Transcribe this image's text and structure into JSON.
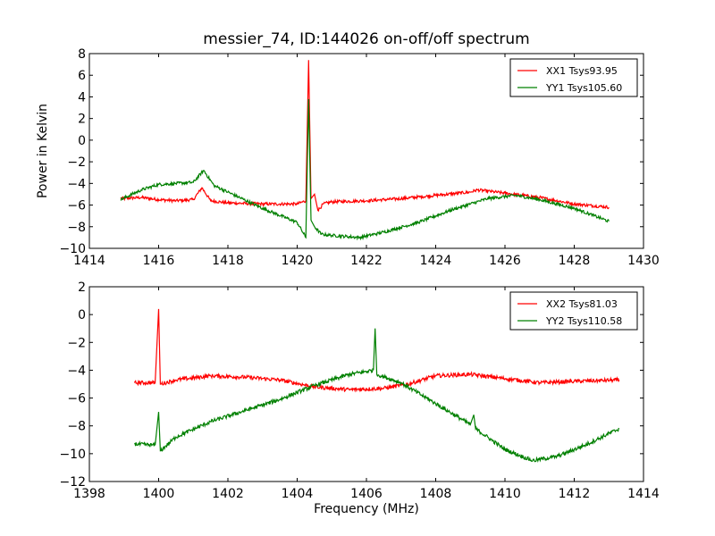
{
  "title": "messier_74, ID:144026 on-off/off spectrum",
  "colors": {
    "xx": "#ff0000",
    "yy": "#008000"
  },
  "chart_data": [
    {
      "type": "line",
      "title": "messier_74, ID:144026 on-off/off spectrum",
      "xlabel": "",
      "ylabel": "Power in Kelvin",
      "xlim": [
        1414,
        1430
      ],
      "ylim": [
        -10,
        8
      ],
      "xticks": [
        "1414",
        "1416",
        "1418",
        "1420",
        "1422",
        "1424",
        "1426",
        "1428",
        "1430"
      ],
      "yticks": [
        "−10",
        "−8",
        "−6",
        "−4",
        "−2",
        "0",
        "2",
        "4",
        "6",
        "8"
      ],
      "xtick_values": [
        1414,
        1416,
        1418,
        1420,
        1422,
        1424,
        1426,
        1428,
        1430
      ],
      "ytick_values": [
        -10,
        -8,
        -6,
        -4,
        -2,
        0,
        2,
        4,
        6,
        8
      ],
      "legend": "top-right",
      "series": [
        {
          "name": "XX1 Tsys93.95",
          "color": "#ff0000",
          "x": [
            1414.9,
            1415.5,
            1416.0,
            1416.5,
            1417.0,
            1417.25,
            1417.5,
            1418.0,
            1419.0,
            1420.0,
            1420.25,
            1420.33,
            1420.4,
            1420.5,
            1420.6,
            1420.75,
            1421.0,
            1422.0,
            1423.0,
            1424.0,
            1425.0,
            1425.2,
            1426.0,
            1427.0,
            1428.0,
            1429.0
          ],
          "y": [
            -5.4,
            -5.3,
            -5.5,
            -5.6,
            -5.5,
            -4.4,
            -5.6,
            -5.8,
            -5.9,
            -5.9,
            -5.6,
            7.4,
            -5.4,
            -5.0,
            -6.5,
            -5.9,
            -5.7,
            -5.6,
            -5.4,
            -5.1,
            -4.8,
            -4.6,
            -4.9,
            -5.3,
            -5.9,
            -6.2
          ]
        },
        {
          "name": "YY1 Tsys105.60",
          "color": "#008000",
          "x": [
            1414.9,
            1415.5,
            1416.0,
            1416.5,
            1417.0,
            1417.3,
            1417.6,
            1418.0,
            1419.0,
            1420.0,
            1420.25,
            1420.33,
            1420.4,
            1420.5,
            1420.7,
            1421.0,
            1421.8,
            1422.5,
            1423.5,
            1424.5,
            1425.5,
            1426.3,
            1427.0,
            1428.0,
            1429.0
          ],
          "y": [
            -5.5,
            -4.6,
            -4.1,
            -4.0,
            -3.9,
            -2.8,
            -4.2,
            -4.8,
            -6.3,
            -7.6,
            -9.0,
            3.8,
            -7.4,
            -8.0,
            -8.7,
            -8.8,
            -9.0,
            -8.5,
            -7.6,
            -6.4,
            -5.4,
            -5.1,
            -5.5,
            -6.3,
            -7.5
          ]
        }
      ]
    },
    {
      "type": "line",
      "title": "",
      "xlabel": "Frequency (MHz)",
      "ylabel": "",
      "xlim": [
        1398,
        1414
      ],
      "ylim": [
        -12,
        2
      ],
      "xticks": [
        "1398",
        "1400",
        "1402",
        "1404",
        "1406",
        "1408",
        "1410",
        "1412",
        "1414"
      ],
      "yticks": [
        "−12",
        "−10",
        "−8",
        "−6",
        "−4",
        "−2",
        "0",
        "2"
      ],
      "xtick_values": [
        1398,
        1400,
        1402,
        1404,
        1406,
        1408,
        1410,
        1412,
        1414
      ],
      "ytick_values": [
        -12,
        -10,
        -8,
        -6,
        -4,
        -2,
        0,
        2
      ],
      "legend": "top-right",
      "series": [
        {
          "name": "XX2 Tsys81.03",
          "color": "#ff0000",
          "x": [
            1399.3,
            1399.9,
            1400.0,
            1400.05,
            1400.5,
            1401.5,
            1402.5,
            1403.5,
            1404.5,
            1405.5,
            1406.5,
            1407.2,
            1408.0,
            1409.0,
            1410.0,
            1411.0,
            1412.0,
            1413.3
          ],
          "y": [
            -4.9,
            -4.9,
            0.4,
            -5.0,
            -4.7,
            -4.4,
            -4.5,
            -4.7,
            -5.2,
            -5.4,
            -5.3,
            -5.0,
            -4.4,
            -4.3,
            -4.6,
            -4.9,
            -4.8,
            -4.7
          ],
          "spikes_note": ""
        },
        {
          "name": "YY2 Tsys110.58",
          "color": "#008000",
          "x": [
            1399.3,
            1399.9,
            1400.0,
            1400.05,
            1400.5,
            1401.5,
            1402.5,
            1403.5,
            1404.5,
            1405.5,
            1406.2,
            1406.25,
            1406.3,
            1407.0,
            1408.0,
            1409.0,
            1409.1,
            1409.15,
            1410.0,
            1410.8,
            1411.5,
            1412.3,
            1413.3
          ],
          "y": [
            -9.3,
            -9.4,
            -7.0,
            -9.8,
            -8.8,
            -7.7,
            -6.9,
            -6.1,
            -5.1,
            -4.3,
            -4.0,
            -1.0,
            -4.3,
            -4.9,
            -6.4,
            -7.9,
            -7.2,
            -8.2,
            -9.7,
            -10.5,
            -10.2,
            -9.4,
            -8.2
          ]
        }
      ]
    }
  ]
}
